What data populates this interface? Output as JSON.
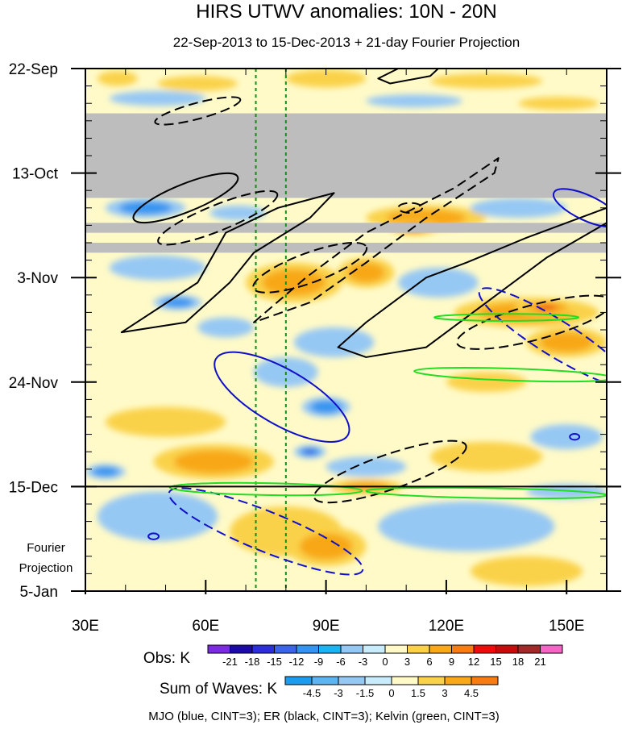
{
  "chart_data": {
    "type": "heatmap",
    "title": "HIRS UTWV anomalies: 10N - 20N",
    "subtitle": "22-Sep-2013 to 15-Dec-2013 + 21-day Fourier Projection",
    "x_axis": {
      "range": [
        30,
        160
      ],
      "ticks": [
        {
          "value": 30,
          "label": "30E"
        },
        {
          "value": 60,
          "label": "60E"
        },
        {
          "value": 90,
          "label": "90E"
        },
        {
          "value": 120,
          "label": "120E"
        },
        {
          "value": 150,
          "label": "150E"
        }
      ]
    },
    "y_axis": {
      "range_days": [
        0,
        105
      ],
      "ticks": [
        {
          "day": 0,
          "label": "22-Sep"
        },
        {
          "day": 21,
          "label": "13-Oct"
        },
        {
          "day": 42,
          "label": "3-Nov"
        },
        {
          "day": 63,
          "label": "24-Nov"
        },
        {
          "day": 84,
          "label": "15-Dec"
        },
        {
          "day": 105,
          "label": "5-Jan"
        }
      ],
      "projection_label_line1": "Fourier",
      "projection_label_line2": "Projection"
    },
    "missing_data_bands_days": [
      [
        9,
        26
      ],
      [
        31,
        33
      ],
      [
        35,
        37
      ]
    ],
    "reference_longitudes": [
      72.5,
      80
    ],
    "projection_start_day": 84,
    "obs_colorbar": {
      "label": "Obs: K",
      "levels": [
        "-21",
        "-18",
        "-15",
        "-12",
        "-9",
        "-6",
        "-3",
        "0",
        "3",
        "6",
        "9",
        "12",
        "15",
        "18",
        "21"
      ],
      "colors": [
        "#7b2be0",
        "#1b0aa6",
        "#2c2ed8",
        "#3c64e8",
        "#3494f0",
        "#1cb4f0",
        "#96c8f4",
        "#c8ecfc",
        "#fffac8",
        "#fad24a",
        "#f8a818",
        "#f77c12",
        "#f00a0a",
        "#c40c0c",
        "#a02a28",
        "#f466c6"
      ]
    },
    "waves_colorbar": {
      "label": "Sum of Waves: K",
      "levels": [
        "-4.5",
        "-3",
        "-1.5",
        "0",
        "1.5",
        "3",
        "4.5"
      ],
      "colors": [
        "#1c9cee",
        "#5cb4f0",
        "#96c8f4",
        "#c8ecfc",
        "#fffac8",
        "#fad24a",
        "#f8a818",
        "#f77c12"
      ]
    },
    "contour_legend": "MJO (blue, CINT=3); ER (black, CINT=3); Kelvin (green, CINT=3)",
    "anomaly_blobs": [
      {
        "lon": 38,
        "day": 2,
        "rx": 5,
        "rd": 1.5,
        "sign": "+",
        "level": 1
      },
      {
        "lon": 58,
        "day": 3,
        "rx": 10,
        "rd": 1.5,
        "sign": "+",
        "level": 1
      },
      {
        "lon": 90,
        "day": 2,
        "rx": 10,
        "rd": 1.8,
        "sign": "+",
        "level": 1
      },
      {
        "lon": 130,
        "day": 2.5,
        "rx": 14,
        "rd": 1.5,
        "sign": "+",
        "level": 1
      },
      {
        "lon": 48,
        "day": 6,
        "rx": 12,
        "rd": 1.5,
        "sign": "-",
        "level": 1
      },
      {
        "lon": 112,
        "day": 6.5,
        "rx": 12,
        "rd": 1.3,
        "sign": "-",
        "level": 1
      },
      {
        "lon": 148,
        "day": 7,
        "rx": 10,
        "rd": 1.3,
        "sign": "+",
        "level": 1
      },
      {
        "lon": 45,
        "day": 28,
        "rx": 10,
        "rd": 2,
        "sign": "-",
        "level": 2
      },
      {
        "lon": 68,
        "day": 29,
        "rx": 7,
        "rd": 1.5,
        "sign": "-",
        "level": 1
      },
      {
        "lon": 115,
        "day": 30,
        "rx": 15,
        "rd": 2.5,
        "sign": "+",
        "level": 2
      },
      {
        "lon": 112,
        "day": 32,
        "rx": 6,
        "rd": 1.5,
        "sign": "+",
        "level": 3
      },
      {
        "lon": 138,
        "day": 28,
        "rx": 12,
        "rd": 2,
        "sign": "-",
        "level": 1
      },
      {
        "lon": 48,
        "day": 40,
        "rx": 12,
        "rd": 2.5,
        "sign": "-",
        "level": 1
      },
      {
        "lon": 53,
        "day": 47,
        "rx": 6,
        "rd": 1.5,
        "sign": "-",
        "level": 2
      },
      {
        "lon": 82,
        "day": 43,
        "rx": 12,
        "rd": 4,
        "sign": "+",
        "level": 2
      },
      {
        "lon": 100,
        "day": 41,
        "rx": 7,
        "rd": 3,
        "sign": "+",
        "level": 2
      },
      {
        "lon": 118,
        "day": 43,
        "rx": 10,
        "rd": 3,
        "sign": "-",
        "level": 1
      },
      {
        "lon": 140,
        "day": 49,
        "rx": 18,
        "rd": 3,
        "sign": "+",
        "level": 2
      },
      {
        "lon": 145,
        "day": 48,
        "rx": 8,
        "rd": 1.6,
        "sign": "+",
        "level": 3
      },
      {
        "lon": 150,
        "day": 55,
        "rx": 10,
        "rd": 3,
        "sign": "+",
        "level": 2
      },
      {
        "lon": 92,
        "day": 55,
        "rx": 10,
        "rd": 3,
        "sign": "-",
        "level": 1
      },
      {
        "lon": 65,
        "day": 52,
        "rx": 7,
        "rd": 2,
        "sign": "-",
        "level": 1
      },
      {
        "lon": 80,
        "day": 61,
        "rx": 8,
        "rd": 3,
        "sign": "-",
        "level": 1
      },
      {
        "lon": 90,
        "day": 68,
        "rx": 6,
        "rd": 2,
        "sign": "-",
        "level": 2
      },
      {
        "lon": 130,
        "day": 63,
        "rx": 10,
        "rd": 2,
        "sign": "+",
        "level": 1
      },
      {
        "lon": 50,
        "day": 71,
        "rx": 15,
        "rd": 3,
        "sign": "+",
        "level": 1
      },
      {
        "lon": 62,
        "day": 79,
        "rx": 15,
        "rd": 3.5,
        "sign": "+",
        "level": 2
      },
      {
        "lon": 86,
        "day": 77,
        "rx": 4,
        "rd": 1.3,
        "sign": "-",
        "level": 3
      },
      {
        "lon": 100,
        "day": 80,
        "rx": 10,
        "rd": 2,
        "sign": "-",
        "level": 1
      },
      {
        "lon": 130,
        "day": 78,
        "rx": 14,
        "rd": 3,
        "sign": "+",
        "level": 1
      },
      {
        "lon": 150,
        "day": 74,
        "rx": 9,
        "rd": 2.5,
        "sign": "-",
        "level": 1
      },
      {
        "lon": 35,
        "day": 81,
        "rx": 5,
        "rd": 1.5,
        "sign": "-",
        "level": 2
      },
      {
        "lon": 100,
        "day": 84,
        "rx": 9,
        "rd": 1.5,
        "sign": "+",
        "level": 2
      },
      {
        "lon": 150,
        "day": 85,
        "rx": 10,
        "rd": 1.5,
        "sign": "-",
        "level": 1
      },
      {
        "lon": 48,
        "day": 90,
        "rx": 15,
        "rd": 5,
        "sign": "-",
        "level": 1
      },
      {
        "lon": 80,
        "day": 93,
        "rx": 14,
        "rd": 5,
        "sign": "+",
        "level": 1
      },
      {
        "lon": 90,
        "day": 96,
        "rx": 10,
        "rd": 4,
        "sign": "+",
        "level": 2
      },
      {
        "lon": 125,
        "day": 92,
        "rx": 22,
        "rd": 5,
        "sign": "-",
        "level": 1
      },
      {
        "lon": 140,
        "day": 101,
        "rx": 14,
        "rd": 3,
        "sign": "+",
        "level": 1
      }
    ],
    "contours": [
      {
        "wave": "ER",
        "sign": "+",
        "color": "#000000",
        "dashed": false,
        "shape": "ellipse",
        "lon": 55,
        "day": 26,
        "rlon": 14,
        "rday": 2.8,
        "angle": -22
      },
      {
        "wave": "ER",
        "sign": "+",
        "color": "#000000",
        "dashed": false,
        "shape": "path",
        "londay": [
          [
            39,
            53
          ],
          [
            58,
            43
          ],
          [
            65,
            33
          ],
          [
            78,
            28
          ],
          [
            92,
            25
          ],
          [
            86,
            30
          ],
          [
            72,
            37
          ],
          [
            66,
            43
          ],
          [
            55,
            51
          ],
          [
            39,
            53
          ]
        ]
      },
      {
        "wave": "ER",
        "sign": "+",
        "color": "#000000",
        "dashed": false,
        "shape": "path",
        "londay": [
          [
            93,
            56
          ],
          [
            100,
            51
          ],
          [
            115,
            42
          ],
          [
            125,
            39
          ],
          [
            140,
            34
          ],
          [
            160,
            28
          ],
          [
            160,
            31
          ],
          [
            145,
            38
          ],
          [
            130,
            47
          ],
          [
            115,
            56
          ],
          [
            100,
            58
          ],
          [
            93,
            56
          ]
        ]
      },
      {
        "wave": "ER",
        "sign": "+",
        "color": "#000000",
        "dashed": false,
        "shape": "path",
        "londay": [
          [
            103,
            2
          ],
          [
            108,
            0
          ],
          [
            118,
            0
          ],
          [
            116,
            1.5
          ],
          [
            106,
            3
          ],
          [
            103,
            2
          ]
        ]
      },
      {
        "wave": "ER",
        "sign": "-",
        "color": "#000000",
        "dashed": true,
        "shape": "ellipse",
        "lon": 58,
        "day": 8.5,
        "rlon": 11,
        "rday": 1.6,
        "angle": -15
      },
      {
        "wave": "ER",
        "sign": "-",
        "color": "#000000",
        "dashed": true,
        "shape": "ellipse",
        "lon": 63,
        "day": 30,
        "rlon": 16,
        "rday": 2.6,
        "angle": -22
      },
      {
        "wave": "ER",
        "sign": "-",
        "color": "#000000",
        "dashed": true,
        "shape": "path",
        "londay": [
          [
            72,
            51
          ],
          [
            85,
            42
          ],
          [
            100,
            33
          ],
          [
            122,
            24
          ],
          [
            133,
            18
          ],
          [
            132,
            21
          ],
          [
            115,
            30
          ],
          [
            100,
            39
          ],
          [
            86,
            47
          ],
          [
            72,
            51
          ]
        ]
      },
      {
        "wave": "ER",
        "sign": "-",
        "color": "#000000",
        "dashed": true,
        "shape": "ellipse",
        "lon": 86,
        "day": 40,
        "rlon": 15,
        "rday": 3,
        "angle": -20
      },
      {
        "wave": "ER",
        "sign": "-",
        "color": "#000000",
        "dashed": true,
        "shape": "ellipse",
        "lon": 106,
        "day": 81,
        "rlon": 20,
        "rday": 3.5,
        "angle": -19
      },
      {
        "wave": "ER",
        "sign": "-",
        "color": "#000000",
        "dashed": true,
        "shape": "ellipse",
        "lon": 142,
        "day": 51,
        "rlon": 20,
        "rday": 3.5,
        "angle": -15
      },
      {
        "wave": "ER",
        "sign": "-",
        "color": "#000000",
        "dashed": true,
        "shape": "ellipse",
        "lon": 111,
        "day": 28,
        "rlon": 3,
        "rday": 1,
        "angle": 0
      },
      {
        "wave": "MJO",
        "sign": "-",
        "color": "#1010c8",
        "dashed": false,
        "shape": "ellipse",
        "lon": 79,
        "day": 66,
        "rlon": 19,
        "rday": 5.5,
        "angle": 30
      },
      {
        "wave": "MJO",
        "sign": "-",
        "color": "#1010c8",
        "dashed": false,
        "shape": "ellipse",
        "lon": 155,
        "day": 28,
        "rlon": 9,
        "rday": 2.5,
        "angle": 25
      },
      {
        "wave": "MJO",
        "sign": "-",
        "color": "#1010c8",
        "dashed": false,
        "shape": "ellipse",
        "lon": 47,
        "day": 94,
        "rlon": 1.3,
        "rday": 0.6,
        "angle": 0
      },
      {
        "wave": "MJO",
        "sign": "-",
        "color": "#1010c8",
        "dashed": false,
        "shape": "ellipse",
        "lon": 152,
        "day": 74,
        "rlon": 1.2,
        "rday": 0.6,
        "angle": 0
      },
      {
        "wave": "MJO",
        "sign": "+",
        "color": "#1010c8",
        "dashed": true,
        "shape": "ellipse",
        "lon": 75,
        "day": 93,
        "rlon": 26,
        "rday": 4,
        "angle": 22
      },
      {
        "wave": "MJO",
        "sign": "+",
        "color": "#1010c8",
        "dashed": true,
        "shape": "ellipse",
        "lon": 147,
        "day": 54,
        "rlon": 22,
        "rday": 3.6,
        "angle": 32
      },
      {
        "wave": "Kelvin",
        "sign": "+",
        "color": "#22dd22",
        "dashed": false,
        "shape": "ellipse",
        "lon": 135,
        "day": 50,
        "rlon": 18,
        "rday": 0.7,
        "angle": 0
      },
      {
        "wave": "Kelvin",
        "sign": "+",
        "color": "#22dd22",
        "dashed": false,
        "shape": "ellipse",
        "lon": 137,
        "day": 61.5,
        "rlon": 25,
        "rday": 1.2,
        "angle": 2
      },
      {
        "wave": "Kelvin",
        "sign": "+",
        "color": "#22dd22",
        "dashed": false,
        "shape": "ellipse",
        "lon": 75,
        "day": 84.5,
        "rlon": 24,
        "rday": 1.2,
        "angle": 1
      },
      {
        "wave": "Kelvin",
        "sign": "+",
        "color": "#22dd22",
        "dashed": false,
        "shape": "ellipse",
        "lon": 130,
        "day": 85.3,
        "rlon": 30,
        "rday": 1,
        "angle": 1
      }
    ]
  }
}
